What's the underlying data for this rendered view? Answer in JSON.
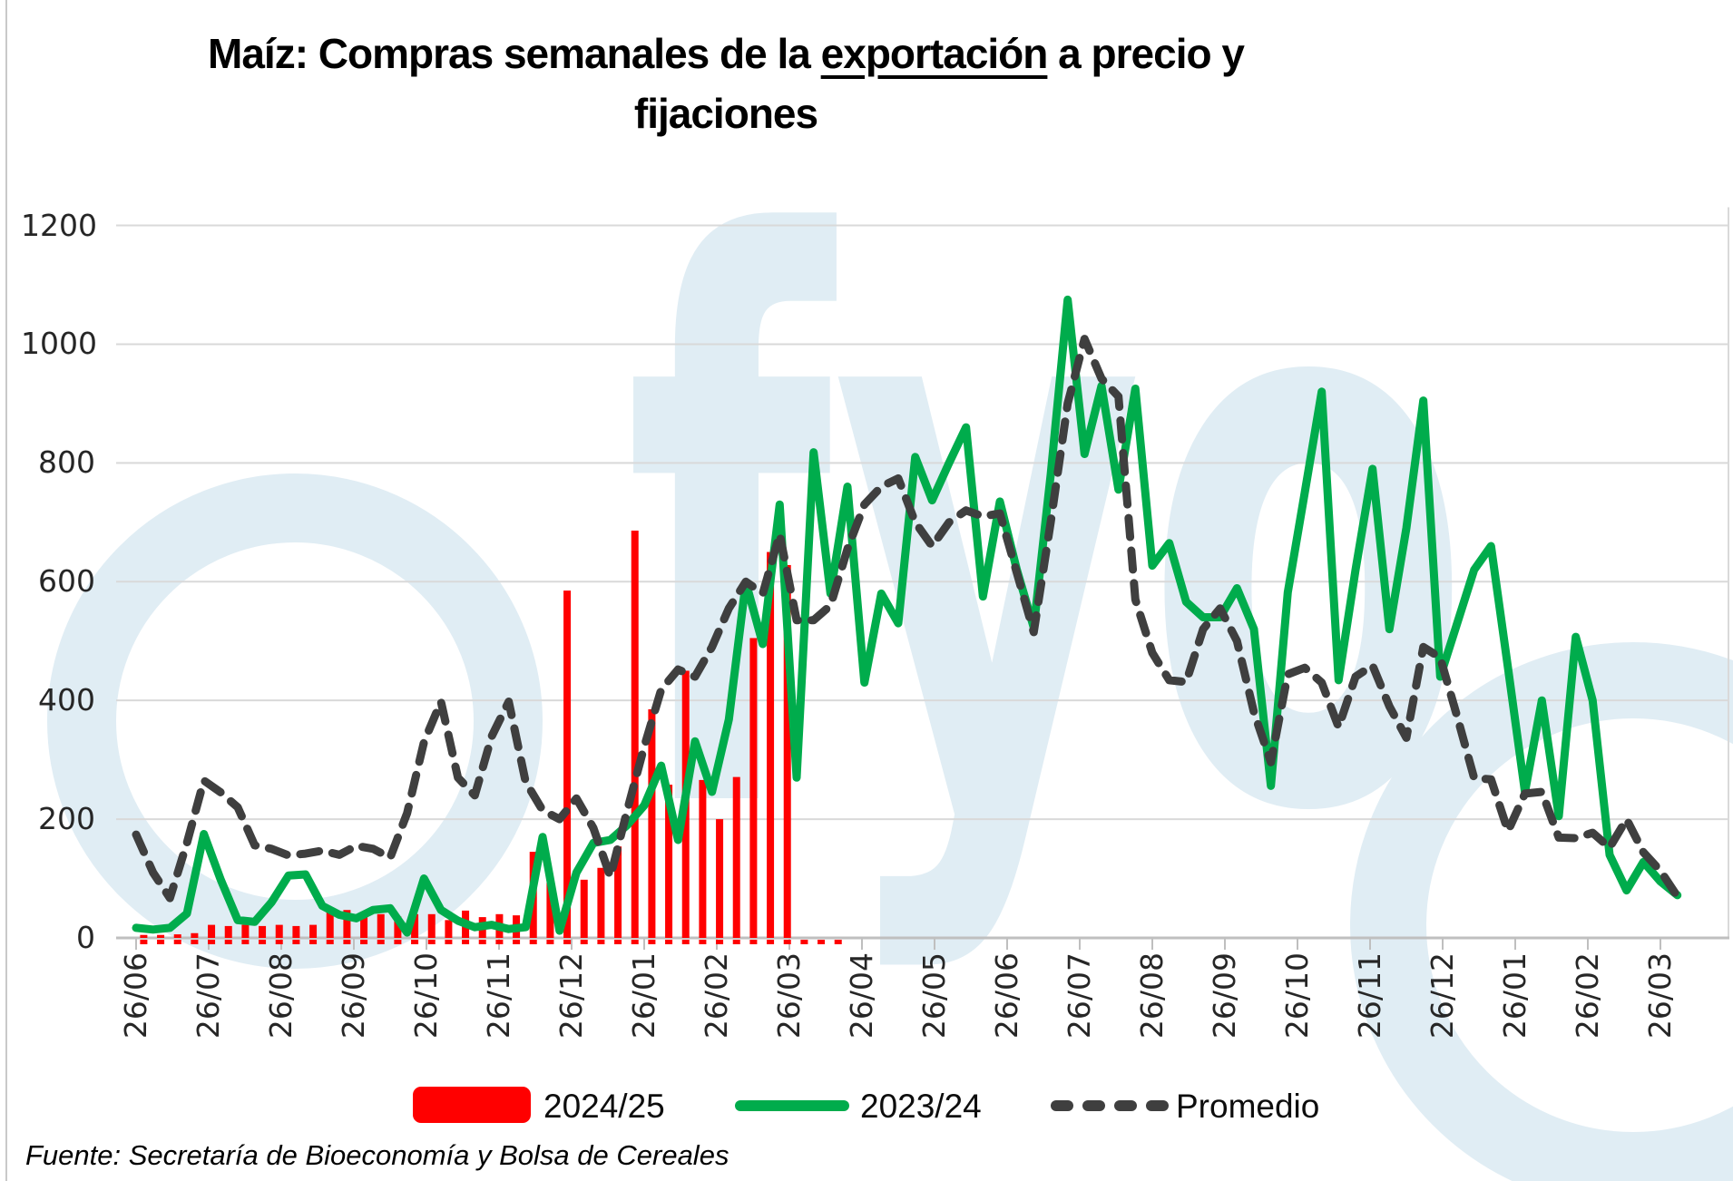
{
  "title": {
    "part1": "Maíz: Compras semanales de la ",
    "underlined": "exportación",
    "part2": " a precio y",
    "line2": "fijaciones"
  },
  "source": {
    "text": "Fuente: Secretaría de Bioeconomía y Bolsa de Cereales"
  },
  "watermark": {
    "text": "fyo",
    "color": "#E0EDF4"
  },
  "legend": {
    "position": "bottom",
    "items": [
      {
        "label": "2024/25",
        "swatch": "bar",
        "color": "#FF0000"
      },
      {
        "label": "2023/24",
        "swatch": "line",
        "color": "#00AC4C"
      },
      {
        "label": "Promedio",
        "swatch": "dashed",
        "color": "#3F3F3F"
      }
    ]
  },
  "chart_data": {
    "type": "combo",
    "title": "Maíz: Compras semanales de la exportación a precio y fijaciones",
    "xlabel": "",
    "ylabel": "",
    "ylim": [
      0,
      1200
    ],
    "y_ticks": [
      0,
      200,
      400,
      600,
      800,
      1000,
      1200
    ],
    "grid": "horizontal",
    "legend_position": "bottom",
    "x_tick_labels": [
      "26/06",
      "26/07",
      "26/08",
      "26/09",
      "26/10",
      "26/11",
      "26/12",
      "26/01",
      "26/02",
      "26/03",
      "26/04",
      "26/05",
      "26/06",
      "26/07",
      "26/08",
      "26/09",
      "26/10",
      "26/11",
      "26/12",
      "26/01",
      "26/02",
      "26/03"
    ],
    "x_note": "weekly data points; axis ticks are monthly",
    "series": [
      {
        "name": "2024/25",
        "type": "bar",
        "color": "#FF0000",
        "weekly_values": [
          5,
          5,
          6,
          8,
          22,
          20,
          22,
          20,
          22,
          20,
          22,
          46,
          47,
          37,
          40,
          36,
          40,
          40,
          30,
          46,
          35,
          40,
          38,
          145,
          93,
          585,
          98,
          118,
          154,
          686,
          385,
          258,
          450,
          266,
          200,
          271,
          505,
          650,
          628,
          0,
          0,
          0
        ]
      },
      {
        "name": "2023/24",
        "type": "line",
        "color": "#00AC4C",
        "weekly_values": [
          17,
          14,
          17,
          41,
          175,
          98,
          30,
          27,
          60,
          105,
          107,
          54,
          39,
          33,
          47,
          50,
          9,
          100,
          47,
          29,
          18,
          22,
          15,
          18,
          170,
          12,
          110,
          160,
          165,
          190,
          223,
          290,
          165,
          331,
          246,
          368,
          599,
          495,
          730,
          270,
          818,
          580,
          760,
          430,
          580,
          530,
          810,
          737,
          800,
          860,
          575,
          735,
          620,
          523,
          780,
          1075,
          815,
          930,
          755,
          925,
          627,
          665,
          566,
          540,
          540,
          589,
          520,
          256,
          582,
          750,
          920,
          434,
          620,
          790,
          520,
          690,
          905,
          440,
          530,
          620,
          660,
          455,
          246,
          400,
          205,
          507,
          400,
          140,
          80,
          128,
          95,
          72
        ]
      },
      {
        "name": "Promedio",
        "type": "line-dashed",
        "color": "#3F3F3F",
        "weekly_values": [
          174,
          110,
          67,
          160,
          265,
          245,
          220,
          156,
          150,
          139,
          142,
          147,
          140,
          155,
          150,
          135,
          210,
          330,
          398,
          270,
          240,
          340,
          398,
          263,
          215,
          200,
          235,
          185,
          103,
          215,
          322,
          418,
          452,
          440,
          490,
          555,
          600,
          580,
          680,
          535,
          535,
          560,
          655,
          730,
          760,
          774,
          700,
          660,
          700,
          720,
          710,
          715,
          615,
          515,
          700,
          900,
          1009,
          942,
          912,
          570,
          480,
          434,
          431,
          520,
          555,
          500,
          380,
          296,
          444,
          455,
          430,
          355,
          440,
          459,
          390,
          337,
          490,
          472,
          373,
          269,
          267,
          180,
          243,
          246,
          169,
          168,
          177,
          152,
          200,
          144,
          113,
          70
        ]
      }
    ]
  }
}
